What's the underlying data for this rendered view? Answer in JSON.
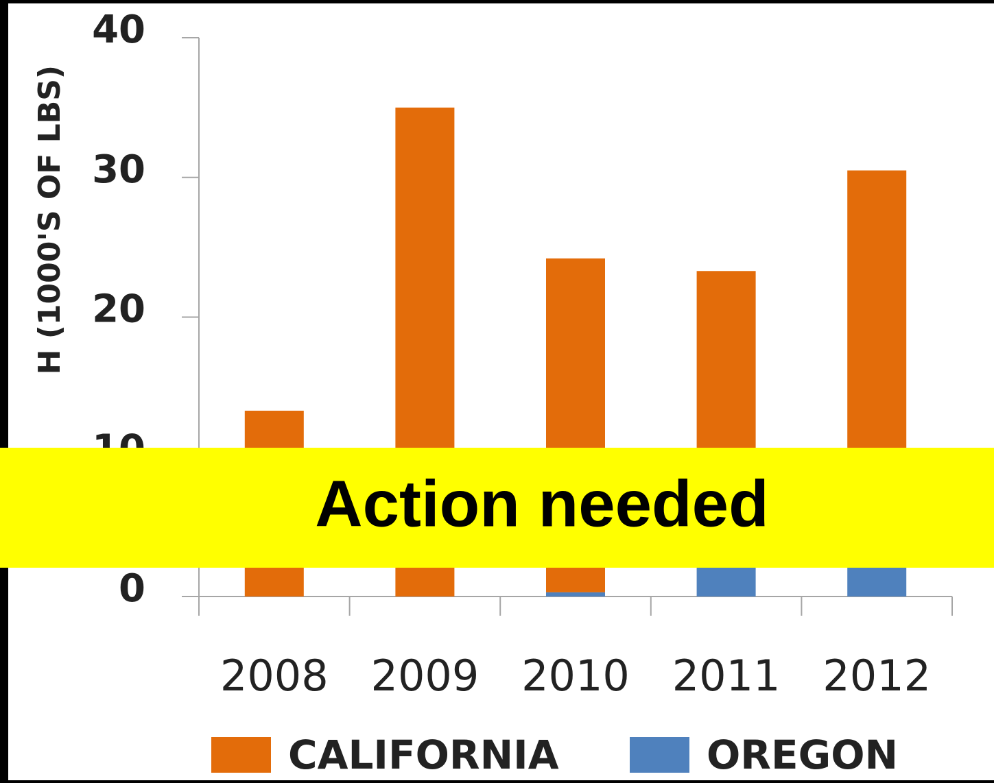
{
  "chart_data": {
    "type": "bar",
    "stacked": true,
    "y_label": "H (1000'S OF LBS)",
    "categories": [
      "2008",
      "2009",
      "2010",
      "2011",
      "2012"
    ],
    "series": [
      {
        "name": "CALIFORNIA",
        "color": "#e36c0a",
        "values": [
          13.3,
          35,
          23.9,
          20.8,
          28
        ]
      },
      {
        "name": "OREGON",
        "color": "#4f81bd",
        "values": [
          0,
          0,
          0.3,
          2.5,
          2.5
        ]
      }
    ],
    "ylim": [
      0,
      40
    ],
    "yticks": [
      0,
      10,
      20,
      30,
      40
    ],
    "grid": false
  },
  "banner": {
    "text": "Action needed"
  }
}
